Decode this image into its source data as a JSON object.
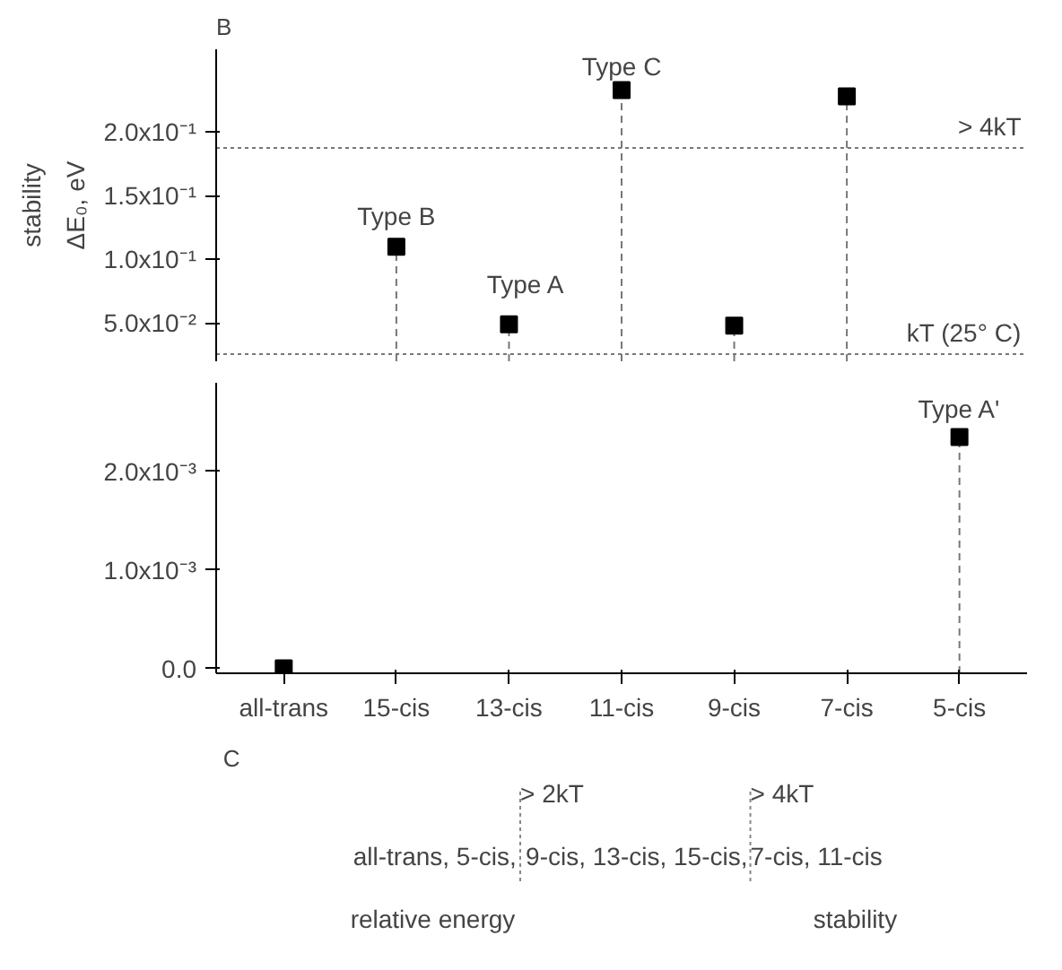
{
  "chart_data": [
    {
      "type": "lollipop",
      "title": "B",
      "ylabel": "ΔE₀, eV",
      "categories": [
        null,
        null,
        null,
        null,
        null,
        null,
        null
      ],
      "series": [
        {
          "color": "#000000",
          "values": [
            null,
            0.11,
            0.049,
            0.233,
            0.048,
            0.228,
            null
          ]
        }
      ],
      "marker": "square",
      "line_style": "dashed",
      "tick_labels": "y",
      "ylim": [
        0.02,
        0.265
      ],
      "yticks": [
        {
          "value": 0.05,
          "label": "5.0x10⁻²"
        },
        {
          "value": 0.1,
          "label": "1.0x10⁻¹"
        },
        {
          "value": 0.15,
          "label": "1.5x10⁻¹"
        },
        {
          "value": 0.2,
          "label": "2.0x10⁻¹"
        }
      ],
      "ref_lines": [
        {
          "axis": "y",
          "value": 0.1875,
          "label": "> 4kT",
          "line_style": "dotted"
        },
        {
          "axis": "y",
          "value": 0.0257,
          "label": "kT (25° C)",
          "line_style": "dotted"
        }
      ],
      "annotations": [
        "Type C",
        "Type B",
        "Type A",
        "stability"
      ]
    },
    {
      "type": "lollipop",
      "categories": [
        "all-trans",
        "15-cis",
        "13-cis",
        "11-cis",
        "9-cis",
        "7-cis",
        "5-cis"
      ],
      "series": [
        {
          "color": "#000000",
          "values": [
            0,
            null,
            null,
            null,
            null,
            null,
            0.00235
          ]
        }
      ],
      "marker": "square",
      "line_style": "dashed",
      "ylim": [
        -5e-05,
        0.0029
      ],
      "yticks": [
        {
          "value": 0,
          "label": "0.0"
        },
        {
          "value": 0.001,
          "label": "1.0x10⁻³"
        },
        {
          "value": 0.002,
          "label": "2.0x10⁻³"
        }
      ],
      "annotations": [
        "Type A'"
      ]
    },
    {
      "type": "other",
      "title": "C",
      "annotations": [
        "> 2kT",
        "> 4kT",
        "all-trans, 5-cis,",
        "9-cis, 13-cis, 15-cis,",
        "7-cis, 11-cis",
        "relative energy",
        "stability"
      ]
    }
  ]
}
